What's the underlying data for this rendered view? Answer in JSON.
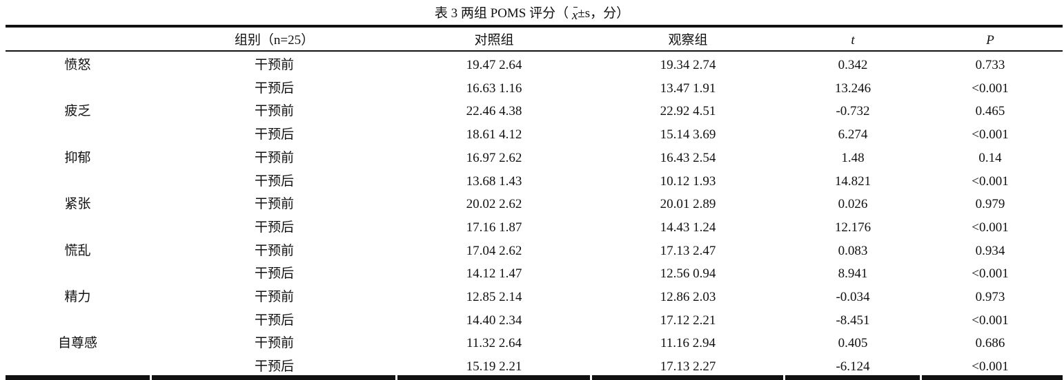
{
  "title": {
    "prefix": "表 3  两组 POMS 评分（ ",
    "x": "x",
    "suffix": "±s，分）"
  },
  "header": [
    "组别（n=25）",
    "对照组",
    "观察组",
    "t",
    "P"
  ],
  "rows": [
    {
      "item": "愤怒",
      "phase": "干预前",
      "control": "19.47  2.64",
      "observe": "19.34  2.74",
      "t": "0.342",
      "p": "0.733"
    },
    {
      "item": "",
      "phase": "干预后",
      "control": "16.63  1.16",
      "observe": "13.47  1.91",
      "t": "13.246",
      "p": "<0.001"
    },
    {
      "item": "疲乏",
      "phase": "干预前",
      "control": "22.46  4.38",
      "observe": "22.92  4.51",
      "t": "-0.732",
      "p": "0.465"
    },
    {
      "item": "",
      "phase": "干预后",
      "control": "18.61  4.12",
      "observe": "15.14  3.69",
      "t": "6.274",
      "p": "<0.001"
    },
    {
      "item": "抑郁",
      "phase": "干预前",
      "control": "16.97  2.62",
      "observe": "16.43  2.54",
      "t": "1.48",
      "p": "0.14"
    },
    {
      "item": "",
      "phase": "干预后",
      "control": "13.68  1.43",
      "observe": "10.12  1.93",
      "t": "14.821",
      "p": "<0.001"
    },
    {
      "item": "紧张",
      "phase": "干预前",
      "control": "20.02  2.62",
      "observe": "20.01  2.89",
      "t": "0.026",
      "p": "0.979"
    },
    {
      "item": "",
      "phase": "干预后",
      "control": "17.16  1.87",
      "observe": "14.43  1.24",
      "t": "12.176",
      "p": "<0.001"
    },
    {
      "item": "慌乱",
      "phase": "干预前",
      "control": "17.04  2.62",
      "observe": "17.13  2.47",
      "t": "0.083",
      "p": "0.934"
    },
    {
      "item": "",
      "phase": "干预后",
      "control": "14.12  1.47",
      "observe": "12.56  0.94",
      "t": "8.941",
      "p": "<0.001"
    },
    {
      "item": "精力",
      "phase": "干预前",
      "control": "12.85  2.14",
      "observe": "12.86  2.03",
      "t": "-0.034",
      "p": "0.973"
    },
    {
      "item": "",
      "phase": "干预后",
      "control": "14.40  2.34",
      "observe": "17.12  2.21",
      "t": "-8.451",
      "p": "<0.001"
    },
    {
      "item": "自尊感",
      "phase": "干预前",
      "control": "11.32  2.64",
      "observe": "11.16  2.94",
      "t": "0.405",
      "p": "0.686"
    },
    {
      "item": "",
      "phase": "干预后",
      "control": "15.19  2.21",
      "observe": "17.13  2.27",
      "t": "-6.124",
      "p": "<0.001"
    }
  ]
}
